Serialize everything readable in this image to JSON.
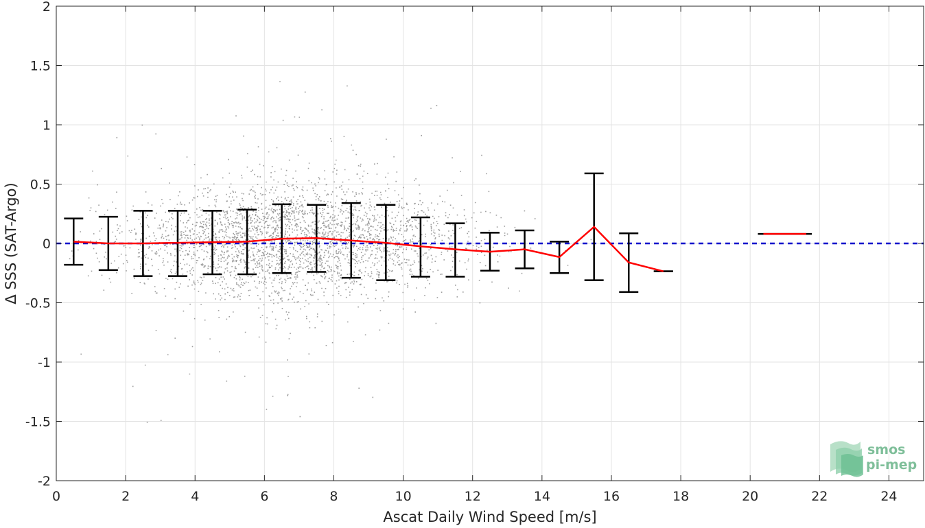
{
  "chart_data": {
    "type": "scatter",
    "xlabel": "Ascat Daily Wind Speed [m/s]",
    "ylabel": "Δ SSS (SAT-Argo)",
    "xlim": [
      0,
      25
    ],
    "ylim": [
      -2,
      2
    ],
    "xticks": [
      0,
      2,
      4,
      6,
      8,
      10,
      12,
      14,
      16,
      18,
      20,
      22,
      24
    ],
    "yticks": [
      -2,
      -1.5,
      -1,
      -0.5,
      0,
      0.5,
      1,
      1.5,
      2
    ],
    "xtick_labels": [
      "0",
      "2",
      "4",
      "6",
      "8",
      "10",
      "12",
      "14",
      "16",
      "18",
      "20",
      "22",
      "24"
    ],
    "ytick_labels": [
      "-2",
      "-1.5",
      "-1",
      "-0.5",
      "0",
      "0.5",
      "1",
      "1.5",
      "2"
    ],
    "grid": true,
    "reference_line": {
      "y": 0,
      "style": "dashed",
      "color": "#0000cc"
    },
    "scatter": {
      "color": "#8c8c8c",
      "description_count": 9000
    },
    "binned_mean": {
      "color": "#ff0000",
      "x": [
        0.5,
        1.5,
        2.5,
        3.5,
        4.5,
        5.5,
        6.5,
        7.5,
        8.5,
        9.5,
        10.5,
        11.5,
        12.5,
        13.5,
        14.5,
        15.5,
        16.5,
        17.5
      ],
      "mean": [
        0.015,
        0.0,
        0.0,
        0.005,
        0.01,
        0.015,
        0.04,
        0.045,
        0.025,
        0.005,
        -0.025,
        -0.05,
        -0.07,
        -0.05,
        -0.115,
        0.14,
        -0.16,
        -0.235
      ],
      "upper": [
        0.21,
        0.225,
        0.275,
        0.275,
        0.275,
        0.285,
        0.33,
        0.325,
        0.34,
        0.325,
        0.22,
        0.17,
        0.09,
        0.11,
        0.015,
        0.59,
        0.085,
        -0.235
      ],
      "lower": [
        -0.18,
        -0.225,
        -0.275,
        -0.275,
        -0.26,
        -0.26,
        -0.25,
        -0.24,
        -0.29,
        -0.31,
        -0.28,
        -0.28,
        -0.23,
        -0.21,
        -0.25,
        -0.31,
        -0.41,
        -0.235
      ]
    },
    "isolated_bin": {
      "x": [
        20.5,
        21.5
      ],
      "mean": 0.08
    }
  },
  "logo": {
    "line1": "smos",
    "line2": "pi-mep"
  }
}
